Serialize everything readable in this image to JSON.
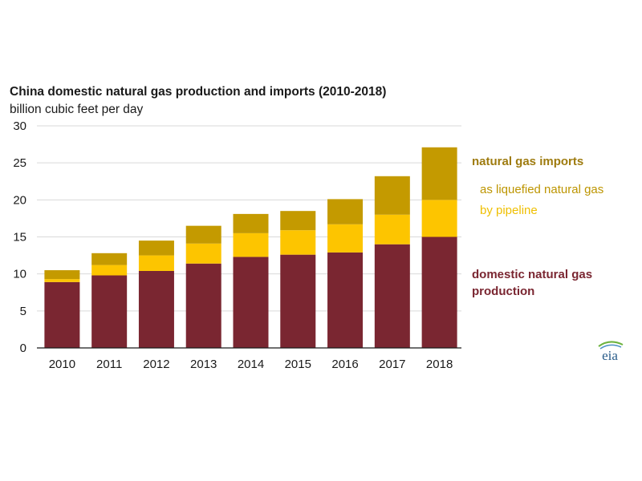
{
  "chart_data": {
    "type": "bar",
    "stacked": true,
    "title": "China domestic natural gas production and imports (2010-2018)",
    "subtitle": "billion cubic feet per day",
    "xlabel": "",
    "ylabel": "billion cubic feet per day",
    "ylim": [
      0,
      30
    ],
    "yticks": [
      0,
      5,
      10,
      15,
      20,
      25,
      30
    ],
    "grid": true,
    "categories": [
      "2010",
      "2011",
      "2012",
      "2013",
      "2014",
      "2015",
      "2016",
      "2017",
      "2018"
    ],
    "series": [
      {
        "name": "domestic natural gas production",
        "color": "#7a2631",
        "values": [
          8.9,
          9.8,
          10.4,
          11.4,
          12.3,
          12.6,
          12.9,
          14.0,
          15.0
        ]
      },
      {
        "name": "by pipeline",
        "color": "#fdc500",
        "values": [
          0.4,
          1.4,
          2.1,
          2.7,
          3.2,
          3.3,
          3.8,
          4.0,
          5.0
        ]
      },
      {
        "name": "as liquefied natural gas",
        "color": "#c49a00",
        "values": [
          1.2,
          1.6,
          2.0,
          2.4,
          2.6,
          2.6,
          3.4,
          5.2,
          7.1
        ]
      }
    ],
    "legend": {
      "imports_heading": "natural gas imports",
      "lng": "as liquefied natural gas",
      "pipeline": "by pipeline",
      "domestic": "domestic natural gas production"
    },
    "legend_placement": "right"
  },
  "logo": {
    "text": "eia"
  }
}
